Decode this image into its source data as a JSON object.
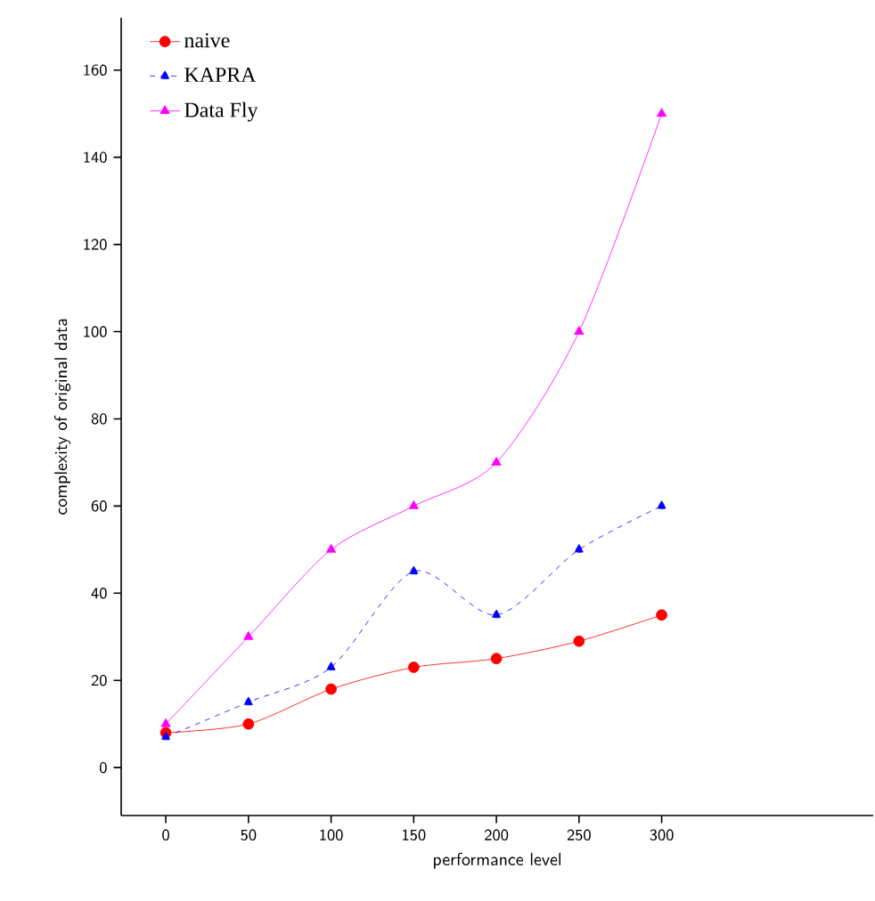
{
  "chart_data": {
    "type": "line",
    "xlabel": "performance level",
    "ylabel": "complexity of original data",
    "x": [
      0,
      50,
      100,
      150,
      200,
      250,
      300
    ],
    "series": [
      {
        "name": "naive",
        "color": "#ff0000",
        "values": [
          8,
          10,
          18,
          23,
          25,
          29,
          35
        ],
        "marker": "circle",
        "line_style": "solid"
      },
      {
        "name": "KAPRA",
        "color": "#0000ff",
        "values": [
          7,
          15,
          23,
          45,
          35,
          50,
          60
        ],
        "marker": "triangle",
        "line_style": "dashed"
      },
      {
        "name": "Data Fly",
        "color": "#ff00ff",
        "values": [
          10,
          30,
          50,
          60,
          70,
          100,
          150
        ],
        "marker": "triangle",
        "line_style": "solid"
      }
    ],
    "xlim": [
      -27,
      428
    ],
    "ylim": [
      -11,
      172
    ],
    "xticks": [
      0,
      50,
      100,
      150,
      200,
      250,
      300
    ],
    "yticks": [
      0,
      20,
      40,
      60,
      80,
      100,
      120,
      140,
      160
    ],
    "legend": "top left",
    "grid": false
  }
}
